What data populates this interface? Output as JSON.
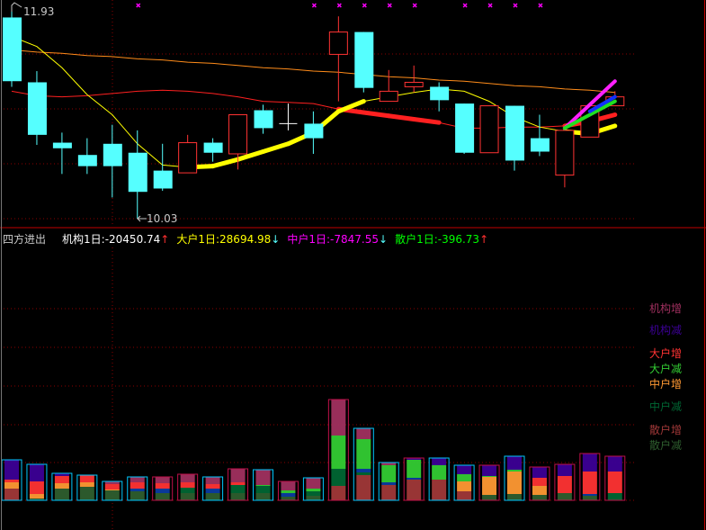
{
  "colors": {
    "up": "#ff3333",
    "down": "#55ffff",
    "doji": "#ffffff",
    "grid": "#8a0000",
    "bar_outline_up": "#c0104a",
    "bar_outline_down": "#00c8ff",
    "marker": "#ff00ff"
  },
  "price_labels": {
    "high": "11.93",
    "low": "10.03"
  },
  "info_bar": {
    "title": "四方进出",
    "items": [
      {
        "label": "机构1日:-20450.74",
        "arrow": "↑",
        "color": "#ffffff",
        "arrow_color": "#ff3030"
      },
      {
        "label": "大户1日:28694.98",
        "arrow": "↓",
        "color": "#ffff00",
        "arrow_color": "#55ffff"
      },
      {
        "label": "中户1日:-7847.55",
        "arrow": "↓",
        "color": "#ff00ff",
        "arrow_color": "#55ffff"
      },
      {
        "label": "散户1日:-396.73",
        "arrow": "↑",
        "color": "#00ff00",
        "arrow_color": "#ff3030"
      }
    ]
  },
  "legend": [
    {
      "key": "jg_inc",
      "label": "机构增",
      "color": "#a0305f"
    },
    {
      "key": "jg_dec",
      "label": "机构减",
      "color": "#3c0096"
    },
    {
      "key": "dh_inc",
      "label": "大户增",
      "color": "#ff3333"
    },
    {
      "key": "dh_dec",
      "label": "大户减",
      "color": "#33cc33"
    },
    {
      "key": "zh_inc",
      "label": "中户增",
      "color": "#ff9933"
    },
    {
      "key": "zh_dec",
      "label": "中户减",
      "color": "#006633"
    },
    {
      "key": "sh_inc",
      "label": "散户增",
      "color": "#a03838"
    },
    {
      "key": "sh_dec",
      "label": "散户减",
      "color": "#2e5e2e"
    }
  ],
  "chart_data": [
    {
      "type": "candlestick",
      "ohlc": [
        [
          11.83,
          11.93,
          11.21,
          11.26
        ],
        [
          11.25,
          11.35,
          10.69,
          10.78
        ],
        [
          10.71,
          10.8,
          10.43,
          10.66
        ],
        [
          10.6,
          10.75,
          10.43,
          10.5
        ],
        [
          10.7,
          10.87,
          10.22,
          10.5
        ],
        [
          10.62,
          10.82,
          10.03,
          10.27
        ],
        [
          10.46,
          10.7,
          10.28,
          10.3
        ],
        [
          10.44,
          10.78,
          10.44,
          10.71
        ],
        [
          10.71,
          10.75,
          10.54,
          10.62
        ],
        [
          10.61,
          10.96,
          10.47,
          10.96
        ],
        [
          11.0,
          11.05,
          10.79,
          10.84
        ],
        [
          10.88,
          11.06,
          10.82,
          10.88
        ],
        [
          10.88,
          10.99,
          10.61,
          10.75
        ],
        [
          11.5,
          11.84,
          11.08,
          11.7
        ],
        [
          11.7,
          11.7,
          11.16,
          11.2
        ],
        [
          11.08,
          11.36,
          11.08,
          11.17
        ],
        [
          11.21,
          11.4,
          11.16,
          11.25
        ],
        [
          11.21,
          11.25,
          10.99,
          11.09
        ],
        [
          11.06,
          11.06,
          10.61,
          10.62
        ],
        [
          10.62,
          11.04,
          10.62,
          11.04
        ],
        [
          11.04,
          11.04,
          10.46,
          10.55
        ],
        [
          10.75,
          10.96,
          10.59,
          10.63
        ],
        [
          10.42,
          10.82,
          10.31,
          10.82
        ],
        [
          10.76,
          11.04,
          10.76,
          11.04
        ],
        [
          11.04,
          11.17,
          11.04,
          11.12
        ]
      ],
      "ylim": [
        10.03,
        11.93
      ],
      "lines": [
        {
          "color": "#ff8c1a",
          "values": [
            11.54,
            11.52,
            11.51,
            11.49,
            11.48,
            11.46,
            11.45,
            11.43,
            11.42,
            11.4,
            11.38,
            11.37,
            11.35,
            11.34,
            11.32,
            11.3,
            11.29,
            11.27,
            11.26,
            11.24,
            11.22,
            11.21,
            11.19,
            11.18,
            11.16
          ],
          "thick": []
        },
        {
          "color": "#ff2020",
          "values": [
            11.17,
            11.13,
            11.12,
            11.13,
            11.15,
            11.17,
            11.18,
            11.17,
            11.15,
            11.12,
            11.08,
            11.07,
            11.06,
            11.01,
            10.98,
            10.95,
            10.92,
            10.89,
            10.84,
            10.84,
            10.85,
            10.85,
            10.86,
            10.9,
            10.96
          ],
          "thick": [
            13,
            14,
            15,
            16,
            17,
            22,
            23,
            24
          ]
        },
        {
          "color": "#ffff00",
          "values": [
            11.66,
            11.57,
            11.38,
            11.14,
            10.96,
            10.7,
            10.51,
            10.49,
            10.5,
            10.56,
            10.63,
            10.7,
            10.8,
            10.99,
            11.08,
            11.12,
            11.16,
            11.19,
            11.17,
            11.08,
            10.94,
            10.85,
            10.81,
            10.79,
            10.86
          ],
          "thick": [
            7,
            8,
            9,
            10,
            11,
            12,
            13,
            14,
            22,
            23,
            24
          ]
        }
      ],
      "fan_lines": [
        {
          "color": "#ff20ff",
          "from": [
            22,
            10.84
          ],
          "to": [
            24,
            11.26
          ]
        },
        {
          "color": "#20e020",
          "from": [
            22,
            10.84
          ],
          "to": [
            24,
            11.08
          ]
        },
        {
          "color": "#1030ff",
          "from": [
            23,
            10.99
          ],
          "to": [
            24,
            11.12
          ]
        }
      ],
      "markers": [
        5,
        12,
        13,
        14,
        15,
        16,
        18,
        19,
        20,
        21
      ]
    },
    {
      "type": "stacked-bar",
      "outline": [
        "down",
        "down",
        "down",
        "down",
        "down",
        "down",
        "up",
        "up",
        "down",
        "up",
        "down",
        "up",
        "down",
        "up",
        "down",
        "down",
        "up",
        "down",
        "down",
        "up",
        "down",
        "up",
        "up",
        "up",
        "up"
      ],
      "segment_colors": {
        "jg_inc": "#a0305f",
        "jg_dec": "#3c0096",
        "dh_inc": "#ff3333",
        "dh_dec": "#33cc33",
        "zh_inc": "#ff9933",
        "zh_dec": "#006633",
        "sh_inc": "#a03838",
        "sh_dec": "#2e5e2e",
        "blue": "#0b3ca0"
      },
      "bars": [
        [
          [
            "sh_inc",
            13
          ],
          [
            "zh_inc",
            7
          ],
          [
            "dh_inc",
            3
          ],
          [
            "jg_dec",
            22
          ]
        ],
        [
          [
            "sh_dec",
            2
          ],
          [
            "zh_inc",
            5
          ],
          [
            "dh_inc",
            14
          ],
          [
            "jg_dec",
            19
          ]
        ],
        [
          [
            "sh_dec",
            13
          ],
          [
            "zh_inc",
            6
          ],
          [
            "dh_inc",
            8
          ],
          [
            "jg_dec",
            3
          ]
        ],
        [
          [
            "sh_dec",
            15
          ],
          [
            "zh_inc",
            5
          ],
          [
            "dh_inc",
            8
          ]
        ],
        [
          [
            "sh_dec",
            11
          ],
          [
            "zh_inc",
            1
          ],
          [
            "dh_inc",
            6
          ],
          [
            "jg_inc",
            3
          ]
        ],
        [
          [
            "sh_dec",
            10
          ],
          [
            "blue",
            3
          ],
          [
            "dh_inc",
            7
          ],
          [
            "jg_inc",
            6
          ]
        ],
        [
          [
            "sh_dec",
            8
          ],
          [
            "blue",
            5
          ],
          [
            "dh_inc",
            6
          ],
          [
            "jg_inc",
            7
          ]
        ],
        [
          [
            "sh_dec",
            8
          ],
          [
            "zh_dec",
            6
          ],
          [
            "dh_inc",
            6
          ],
          [
            "jg_inc",
            9
          ]
        ],
        [
          [
            "sh_dec",
            8
          ],
          [
            "blue",
            5
          ],
          [
            "dh_inc",
            5
          ],
          [
            "jg_inc",
            8
          ]
        ],
        [
          [
            "sh_dec",
            8
          ],
          [
            "zh_dec",
            9
          ],
          [
            "dh_inc",
            3
          ],
          [
            "jg_inc",
            15
          ]
        ],
        [
          [
            "sh_dec",
            8
          ],
          [
            "zh_dec",
            8
          ],
          [
            "dh_dec",
            1
          ],
          [
            "jg_inc",
            17
          ]
        ],
        [
          [
            "sh_dec",
            4
          ],
          [
            "blue",
            4
          ],
          [
            "dh_dec",
            3
          ],
          [
            "jg_inc",
            10
          ]
        ],
        [
          [
            "sh_dec",
            5
          ],
          [
            "zh_dec",
            5
          ],
          [
            "dh_dec",
            3
          ],
          [
            "jg_inc",
            12
          ]
        ],
        [
          [
            "sh_inc",
            16
          ],
          [
            "zh_dec",
            19
          ],
          [
            "dh_dec",
            37
          ],
          [
            "jg_inc",
            40
          ]
        ],
        [
          [
            "sh_inc",
            28
          ],
          [
            "zh_dec",
            3
          ],
          [
            "blue",
            4
          ],
          [
            "dh_dec",
            33
          ],
          [
            "jg_inc",
            12
          ]
        ],
        [
          [
            "sh_inc",
            17
          ],
          [
            "blue",
            3
          ],
          [
            "dh_dec",
            19
          ],
          [
            "jg_inc",
            3
          ]
        ],
        [
          [
            "sh_inc",
            23
          ],
          [
            "blue",
            2
          ],
          [
            "dh_dec",
            20
          ],
          [
            "jg_dec",
            2
          ]
        ],
        [
          [
            "sh_inc",
            23
          ],
          [
            "dh_dec",
            16
          ],
          [
            "jg_dec",
            8
          ]
        ],
        [
          [
            "sh_inc",
            10
          ],
          [
            "zh_inc",
            11
          ],
          [
            "dh_dec",
            8
          ],
          [
            "jg_dec",
            10
          ]
        ],
        [
          [
            "sh_dec",
            6
          ],
          [
            "zh_inc",
            20
          ],
          [
            "dh_dec",
            1
          ],
          [
            "jg_dec",
            12
          ]
        ],
        [
          [
            "sh_dec",
            7
          ],
          [
            "zh_inc",
            25
          ],
          [
            "dh_dec",
            2
          ],
          [
            "jg_dec",
            15
          ]
        ],
        [
          [
            "sh_dec",
            6
          ],
          [
            "zh_inc",
            10
          ],
          [
            "dh_inc",
            9
          ],
          [
            "jg_dec",
            12
          ]
        ],
        [
          [
            "sh_dec",
            8
          ],
          [
            "dh_inc",
            19
          ],
          [
            "jg_dec",
            13
          ]
        ],
        [
          [
            "sh_dec",
            5
          ],
          [
            "blue",
            2
          ],
          [
            "dh_inc",
            25
          ],
          [
            "jg_dec",
            20
          ]
        ],
        [
          [
            "zh_dec",
            8
          ],
          [
            "dh_inc",
            24
          ],
          [
            "jg_dec",
            17
          ]
        ]
      ]
    }
  ]
}
